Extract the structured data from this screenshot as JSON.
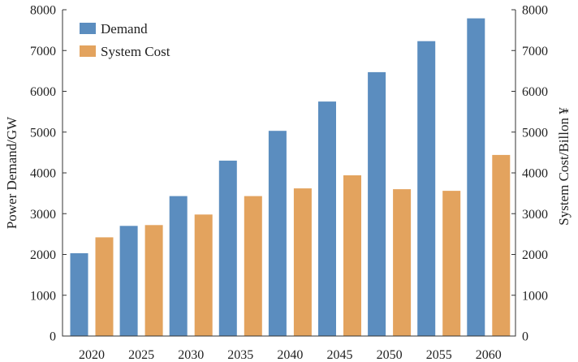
{
  "chart_data": {
    "type": "bar",
    "categories": [
      "2020",
      "2025",
      "2030",
      "2035",
      "2040",
      "2045",
      "2050",
      "2055",
      "2060"
    ],
    "series": [
      {
        "name": "Demand",
        "values": [
          2030,
          2700,
          3430,
          4300,
          5030,
          5750,
          6470,
          7230,
          7790
        ],
        "color": "#5B8DBF",
        "axis": "left"
      },
      {
        "name": "System Cost",
        "values": [
          2420,
          2720,
          2980,
          3430,
          3620,
          3940,
          3600,
          3560,
          4440
        ],
        "color": "#E3A35E",
        "axis": "right"
      }
    ],
    "ylabel": "Power Demand/GW",
    "y2label": "System Cost/Billon ¥",
    "ylim": [
      0,
      8000
    ],
    "y2lim": [
      0,
      8000
    ],
    "yticks": [
      "0",
      "1000",
      "2000",
      "3000",
      "4000",
      "5000",
      "6000",
      "7000",
      "8000"
    ],
    "y2ticks": [
      "0",
      "1000",
      "2000",
      "3000",
      "4000",
      "5000",
      "6000",
      "7000",
      "8000"
    ],
    "legend_position": "top-left",
    "grid": false
  }
}
